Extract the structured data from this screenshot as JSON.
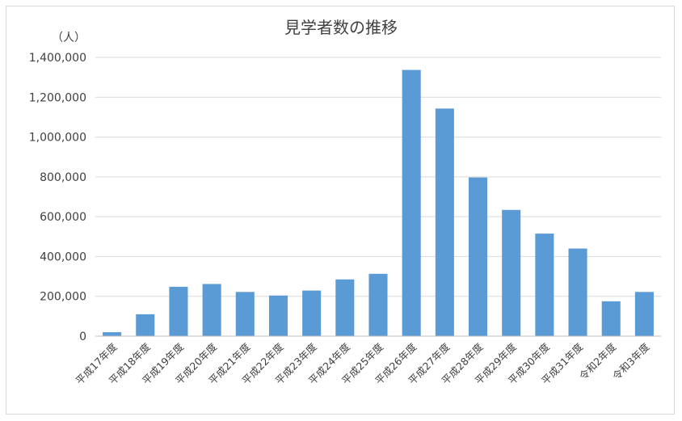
{
  "chart_data": {
    "type": "bar",
    "title": "見学者数の推移",
    "ylabel": "（人）",
    "xlabel": "",
    "categories": [
      "平成17年度",
      "平成18年度",
      "平成19年度",
      "平成20年度",
      "平成21年度",
      "平成22年度",
      "平成23年度",
      "平成24年度",
      "平成25年度",
      "平成26年度",
      "平成27年度",
      "平成28年度",
      "平成29年度",
      "平成30年度",
      "平成31年度",
      "令和2年度",
      "令和3年度"
    ],
    "values": [
      20000,
      110000,
      248000,
      262000,
      222000,
      204000,
      229000,
      285000,
      313000,
      1337000,
      1143000,
      797000,
      634000,
      515000,
      440000,
      175000,
      222000
    ],
    "ylim": [
      0,
      1400000
    ],
    "yticks": [
      "0",
      "200,000",
      "400,000",
      "600,000",
      "800,000",
      "1,000,000",
      "1,200,000",
      "1,400,000"
    ],
    "grid": true,
    "legend": "none",
    "colors": {
      "bar": "#5b9bd5",
      "grid": "#d9d9d9",
      "text": "#404040"
    }
  }
}
